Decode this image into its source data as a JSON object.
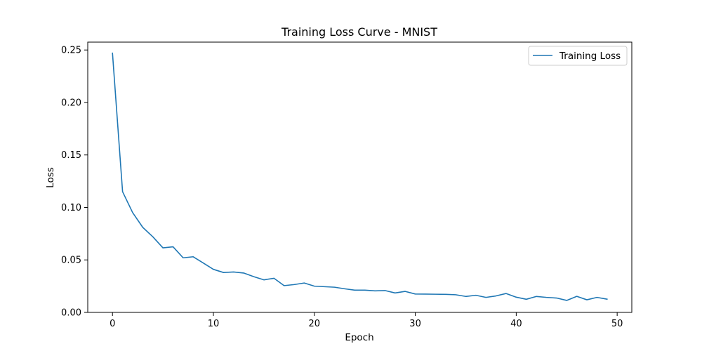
{
  "chart_data": {
    "type": "line",
    "title": "Training Loss Curve - MNIST",
    "xlabel": "Epoch",
    "ylabel": "Loss",
    "xlim": [
      -2.45,
      51.45
    ],
    "ylim": [
      0.0,
      0.2575
    ],
    "xticks": [
      0,
      10,
      20,
      30,
      40,
      50
    ],
    "xtick_labels": [
      "0",
      "10",
      "20",
      "30",
      "40",
      "50"
    ],
    "yticks": [
      0.0,
      0.05,
      0.1,
      0.15,
      0.2,
      0.25
    ],
    "ytick_labels": [
      "0.00",
      "0.05",
      "0.10",
      "0.15",
      "0.20",
      "0.25"
    ],
    "grid": false,
    "legend": {
      "position": "top-right",
      "entries": [
        "Training Loss"
      ]
    },
    "series": [
      {
        "name": "Training Loss",
        "color": "#1f77b4",
        "x": [
          0,
          1,
          2,
          3,
          4,
          5,
          6,
          7,
          8,
          9,
          10,
          11,
          12,
          13,
          14,
          15,
          16,
          17,
          18,
          19,
          20,
          21,
          22,
          23,
          24,
          25,
          26,
          27,
          28,
          29,
          30,
          31,
          32,
          33,
          34,
          35,
          36,
          37,
          38,
          39,
          40,
          41,
          42,
          43,
          44,
          45,
          46,
          47,
          48,
          49
        ],
        "y": [
          0.247,
          0.115,
          0.095,
          0.081,
          0.072,
          0.0615,
          0.0625,
          0.052,
          0.053,
          0.047,
          0.041,
          0.038,
          0.0385,
          0.0375,
          0.034,
          0.031,
          0.0325,
          0.0255,
          0.0265,
          0.028,
          0.025,
          0.0245,
          0.024,
          0.0225,
          0.0212,
          0.0212,
          0.0205,
          0.0208,
          0.0185,
          0.02,
          0.0175,
          0.0174,
          0.0173,
          0.0172,
          0.0168,
          0.0152,
          0.0163,
          0.0143,
          0.0157,
          0.018,
          0.0145,
          0.0125,
          0.0152,
          0.0143,
          0.0137,
          0.0114,
          0.0153,
          0.012,
          0.0143,
          0.0126
        ]
      }
    ]
  }
}
